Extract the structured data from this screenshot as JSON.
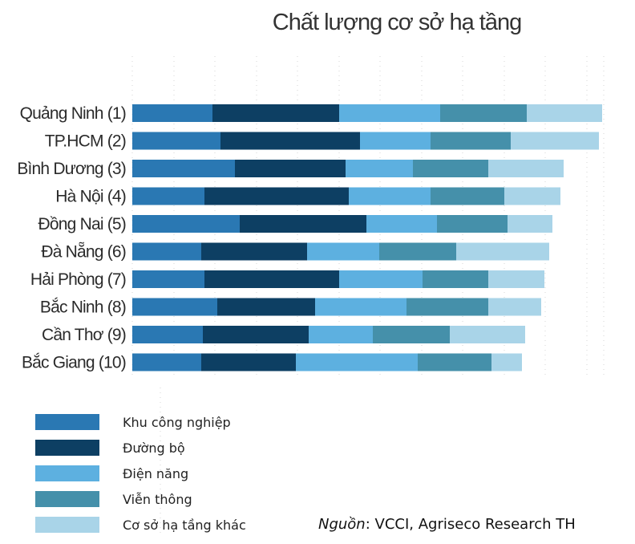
{
  "chart_data": {
    "type": "bar",
    "orientation": "horizontal",
    "stacked": true,
    "title": "Chất lượng cơ sở hạ tầng",
    "categories": [
      "Quảng Ninh (1)",
      "TP.HCM (2)",
      "Bình Dương (3)",
      "Hà Nội (4)",
      "Đồng Nai (5)",
      "Đà Nẵng (6)",
      "Hải Phòng (7)",
      "Bắc Ninh (8)",
      "Cần Thơ (9)",
      "Bắc Giang (10)"
    ],
    "series": [
      {
        "name": "Khu công nghiệp",
        "color": "#2a78b3",
        "values": [
          25,
          27.5,
          32,
          22.5,
          33.5,
          21.5,
          22.5,
          26.5,
          22,
          21.5
        ]
      },
      {
        "name": "Đường bộ",
        "color": "#0d3f63",
        "values": [
          39.5,
          43.5,
          34.5,
          45,
          39.5,
          33,
          42,
          30.5,
          33,
          29.5
        ]
      },
      {
        "name": "Điện năng",
        "color": "#5db0e0",
        "values": [
          31.5,
          22,
          21,
          25.5,
          22,
          22.5,
          26,
          28.5,
          20,
          38
        ]
      },
      {
        "name": "Viễn thông",
        "color": "#4590aa",
        "values": [
          27,
          25,
          23.5,
          23,
          22,
          24,
          20.5,
          25.5,
          24,
          23
        ]
      },
      {
        "name": "Cơ sở hạ tầng khác",
        "color": "#a9d4e8",
        "values": [
          23.5,
          27.5,
          23.5,
          17.5,
          14,
          29,
          17.5,
          16.5,
          23.5,
          9.5
        ]
      }
    ],
    "xlim": [
      0,
      150
    ],
    "grid": true,
    "legend_position": "bottom-left"
  },
  "source": {
    "label": "Nguồn",
    "separator": ": ",
    "text": "VCCI, Agriseco Research TH"
  }
}
